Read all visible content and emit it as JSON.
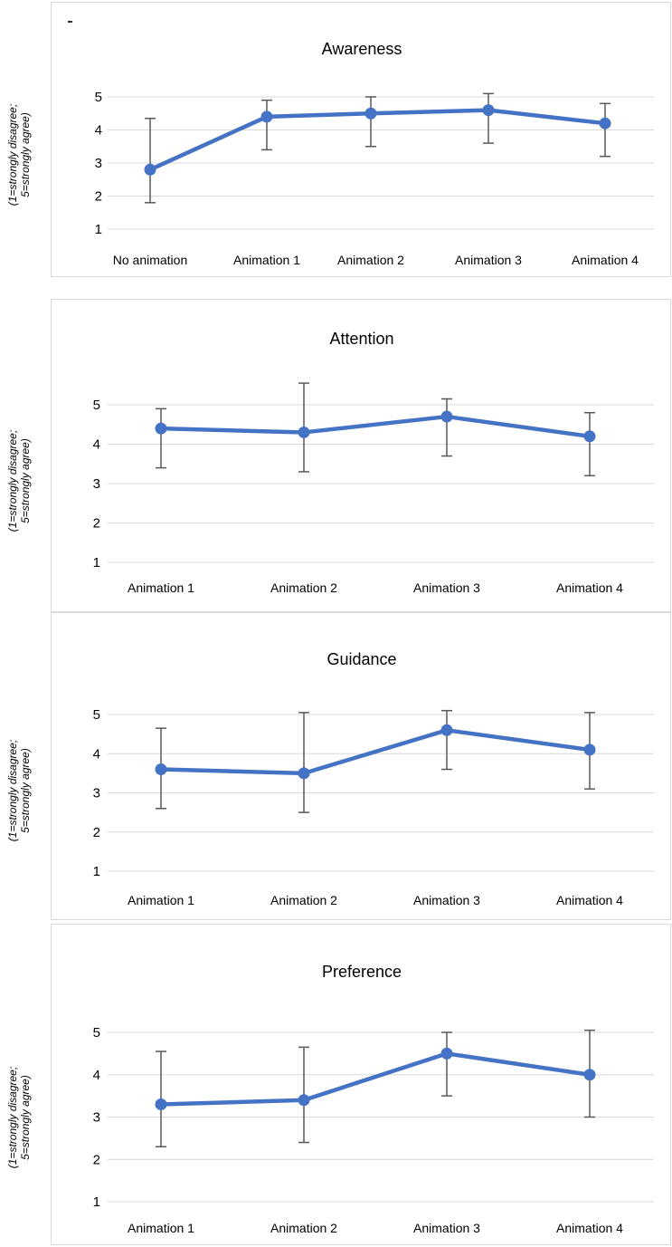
{
  "chart_data": [
    {
      "type": "line",
      "title": "Awareness",
      "ylabel": "(1=strongly disagree; 5=strongly agree)",
      "ylabel_lines": [
        "(1=strongly disagree;",
        "5=strongly agree)"
      ],
      "categories": [
        "No animation",
        "Animation 1",
        "Animation 2",
        "Animation 3",
        "Animation 4"
      ],
      "values": [
        2.8,
        4.4,
        4.5,
        4.6,
        4.2
      ],
      "error_high": [
        4.35,
        4.9,
        5.0,
        5.1,
        4.8
      ],
      "error_low": [
        1.8,
        3.4,
        3.5,
        3.6,
        3.2
      ],
      "yticks": [
        1,
        2,
        3,
        4,
        5
      ],
      "ylim": [
        0.7,
        5.2
      ],
      "grid": true,
      "color": "#4472c4"
    },
    {
      "type": "line",
      "title": "Attention",
      "ylabel": "(1=strongly disagree; 5=strongly agree)",
      "ylabel_lines": [
        "(1=strongly disagree;",
        "5=strongly agree)"
      ],
      "categories": [
        "Animation 1",
        "Animation 2",
        "Animation 3",
        "Animation 4"
      ],
      "values": [
        4.4,
        4.3,
        4.7,
        4.2
      ],
      "error_high": [
        4.9,
        5.55,
        5.15,
        4.8
      ],
      "error_low": [
        3.4,
        3.3,
        3.7,
        3.2
      ],
      "yticks": [
        1,
        2,
        3,
        4,
        5
      ],
      "ylim": [
        0.7,
        5.7
      ],
      "grid": true,
      "color": "#4472c4"
    },
    {
      "type": "line",
      "title": "Guidance",
      "ylabel": "(1=strongly disagree; 5=strongly agree)",
      "ylabel_lines": [
        "(1=strongly disagree;",
        "5=strongly agree)"
      ],
      "categories": [
        "Animation 1",
        "Animation 2",
        "Animation 3",
        "Animation 4"
      ],
      "values": [
        3.6,
        3.5,
        4.6,
        4.1
      ],
      "error_high": [
        4.65,
        5.05,
        5.1,
        5.05
      ],
      "error_low": [
        2.6,
        2.5,
        3.6,
        3.1
      ],
      "yticks": [
        1,
        2,
        3,
        4,
        5
      ],
      "ylim": [
        0.7,
        5.5
      ],
      "grid": true,
      "color": "#4472c4"
    },
    {
      "type": "line",
      "title": "Preference",
      "ylabel": "(1=strongly disagree; 5=strongly agree)",
      "ylabel_lines": [
        "(1=strongly disagree;",
        "5=strongly agree)"
      ],
      "categories": [
        "Animation 1",
        "Animation 2",
        "Animation 3",
        "Animation 4"
      ],
      "values": [
        3.3,
        3.4,
        4.5,
        4.0
      ],
      "error_high": [
        4.55,
        4.65,
        5.0,
        5.05
      ],
      "error_low": [
        2.3,
        2.4,
        3.5,
        3.0
      ],
      "yticks": [
        1,
        2,
        3,
        4,
        5
      ],
      "ylim": [
        0.7,
        5.5
      ],
      "grid": true,
      "color": "#4472c4"
    }
  ]
}
